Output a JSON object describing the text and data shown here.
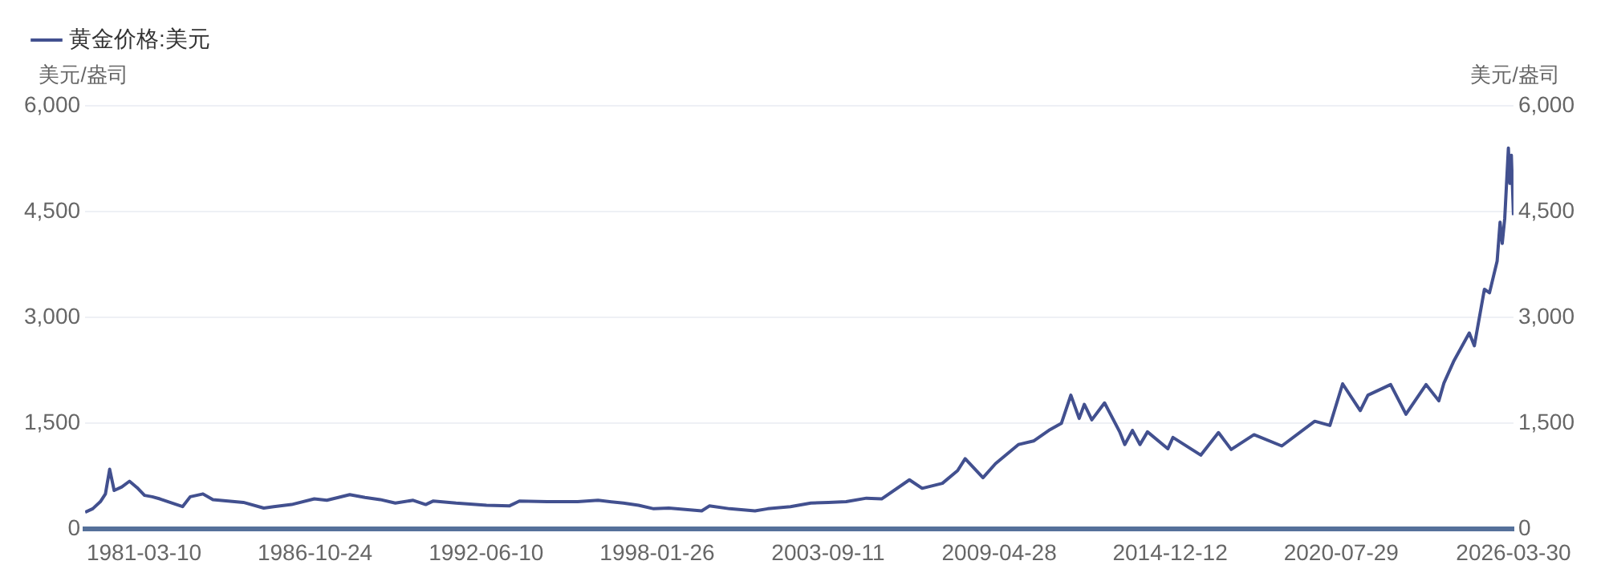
{
  "chart_data": {
    "type": "line",
    "ylabel": "美元/盎司",
    "y2label": "美元/盎司",
    "legend": "top left",
    "grid": "y",
    "marker": "none",
    "line_style": "solid",
    "xlim": [
      "1979-04-01",
      "2026-03-30"
    ],
    "xticks": [
      "1981-03-10",
      "1986-10-24",
      "1992-06-10",
      "1998-01-26",
      "2003-09-11",
      "2009-04-28",
      "2014-12-12",
      "2020-07-29",
      "2026-03-30"
    ],
    "ylim": [
      0,
      6000
    ],
    "yticks": [
      0,
      {
        "value": 1500,
        "label": "1,500"
      },
      {
        "value": 3000,
        "label": "3,000"
      },
      {
        "value": 4500,
        "label": "4,500"
      },
      {
        "value": 6000,
        "label": "6,000"
      }
    ],
    "y2lim": [
      0,
      6000
    ],
    "y2ticks": [
      0,
      {
        "value": 1500,
        "label": "1,500"
      },
      {
        "value": 3000,
        "label": "3,000"
      },
      {
        "value": 4500,
        "label": "4,500"
      },
      {
        "value": 6000,
        "label": "6,000"
      }
    ],
    "x": [
      "1979-04-01",
      "1979-07-01",
      "1979-10-01",
      "1979-12-01",
      "1980-01-21",
      "1980-03-15",
      "1980-06-15",
      "1980-09-15",
      "1980-12-15",
      "1981-03-15",
      "1981-06-15",
      "1981-09-15",
      "1982-06-15",
      "1982-09-15",
      "1983-02-15",
      "1983-06-15",
      "1984-06-15",
      "1985-02-15",
      "1985-06-15",
      "1986-01-15",
      "1986-10-15",
      "1987-03-15",
      "1987-12-15",
      "1988-06-15",
      "1988-12-15",
      "1989-06-15",
      "1990-01-15",
      "1990-06-15",
      "1990-09-15",
      "1991-06-15",
      "1992-06-15",
      "1993-03-15",
      "1993-07-15",
      "1994-06-15",
      "1995-06-15",
      "1996-02-15",
      "1996-12-15",
      "1997-06-15",
      "1997-12-15",
      "1998-06-15",
      "1999-07-15",
      "1999-10-15",
      "2000-06-15",
      "2001-04-15",
      "2001-09-15",
      "2002-06-15",
      "2003-02-15",
      "2003-09-15",
      "2004-04-15",
      "2004-12-15",
      "2005-06-15",
      "2006-05-15",
      "2006-10-15",
      "2007-06-15",
      "2007-12-15",
      "2008-03-15",
      "2008-10-15",
      "2009-03-15",
      "2009-12-15",
      "2010-06-15",
      "2010-12-15",
      "2011-05-15",
      "2011-09-06",
      "2011-12-15",
      "2012-02-15",
      "2012-05-15",
      "2012-10-15",
      "2013-04-15",
      "2013-06-15",
      "2013-09-15",
      "2013-12-15",
      "2014-03-15",
      "2014-11-15",
      "2015-01-15",
      "2015-12-15",
      "2016-07-15",
      "2016-12-15",
      "2017-09-15",
      "2018-08-15",
      "2019-09-15",
      "2020-03-15",
      "2020-08-15",
      "2021-03-15",
      "2021-06-15",
      "2022-03-15",
      "2022-09-15",
      "2023-05-15",
      "2023-10-15",
      "2023-12-15",
      "2024-04-15",
      "2024-10-15",
      "2024-12-15",
      "2025-04-15",
      "2025-06-15",
      "2025-09-15",
      "2025-10-20",
      "2025-11-15",
      "2025-12-15",
      "2026-01-28",
      "2026-02-15",
      "2026-03-05",
      "2026-03-30"
    ],
    "series": [
      {
        "name": "黄金价格:美元",
        "color": "#42508f",
        "values": [
          240,
          290,
          390,
          500,
          850,
          550,
          600,
          680,
          590,
          480,
          460,
          430,
          320,
          460,
          500,
          420,
          380,
          300,
          320,
          350,
          430,
          410,
          490,
          450,
          420,
          370,
          410,
          350,
          400,
          370,
          340,
          330,
          400,
          390,
          390,
          410,
          370,
          340,
          290,
          300,
          260,
          330,
          290,
          260,
          290,
          320,
          370,
          380,
          390,
          440,
          430,
          700,
          580,
          650,
          830,
          1000,
          730,
          930,
          1200,
          1250,
          1400,
          1500,
          1900,
          1570,
          1770,
          1550,
          1790,
          1380,
          1200,
          1400,
          1200,
          1380,
          1140,
          1300,
          1050,
          1370,
          1130,
          1340,
          1180,
          1530,
          1470,
          2060,
          1680,
          1900,
          2050,
          1630,
          2050,
          1820,
          2070,
          2390,
          2780,
          2600,
          3400,
          3350,
          3800,
          4350,
          4050,
          4400,
          5400,
          4900,
          5300,
          4450
        ]
      }
    ]
  }
}
